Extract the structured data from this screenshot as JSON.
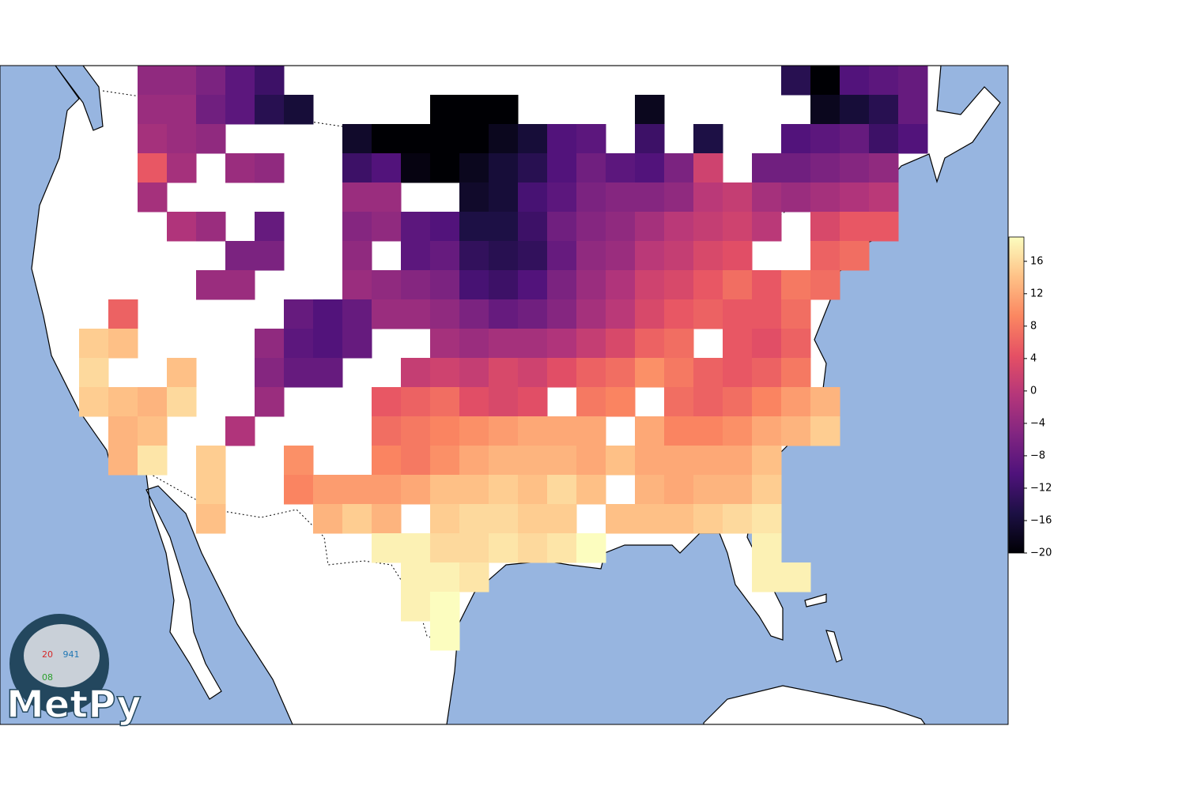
{
  "chart_data": {
    "type": "heatmap",
    "colormap": [
      "#000004",
      "#1c1044",
      "#4f127b",
      "#812581",
      "#b5367a",
      "#e55064",
      "#fb8761",
      "#fec287",
      "#fcfdbf"
    ],
    "clim": [
      -20,
      19
    ],
    "cticks": [
      {
        "value": -20,
        "label": "−20"
      },
      {
        "value": -16,
        "label": "−16"
      },
      {
        "value": -12,
        "label": "−12"
      },
      {
        "value": -8,
        "label": "−8"
      },
      {
        "value": -4,
        "label": "−4"
      },
      0,
      4,
      8,
      12,
      16
    ],
    "values": [
      [
        null,
        null,
        -4,
        -4,
        -6,
        -9,
        -12,
        null,
        null,
        null,
        null,
        null,
        null,
        null,
        null,
        null,
        null,
        null,
        null,
        null,
        null,
        null,
        null,
        null,
        -14,
        -20,
        -10,
        -9,
        -8
      ],
      [
        null,
        null,
        -3,
        -3,
        -7,
        -9,
        -14,
        -16,
        null,
        null,
        null,
        null,
        -20,
        -20,
        -20,
        null,
        null,
        null,
        null,
        -18,
        null,
        null,
        null,
        null,
        null,
        -18,
        -16,
        -14,
        -8
      ],
      [
        null,
        null,
        -2,
        -3,
        -4,
        null,
        null,
        null,
        null,
        -17,
        -20,
        -20,
        -20,
        -20,
        -18,
        -16,
        -10,
        -9,
        null,
        -12,
        null,
        -15,
        null,
        null,
        -10,
        -9,
        -8,
        -12,
        -10
      ],
      [
        null,
        null,
        5,
        -2,
        null,
        -3,
        -4,
        null,
        null,
        -12,
        -10,
        -19,
        -20,
        -18,
        -16,
        -14,
        -10,
        -7,
        -9,
        -10,
        -6,
        2,
        null,
        -7,
        -7,
        -6,
        -5,
        -4,
        null
      ],
      [
        null,
        null,
        -2,
        null,
        null,
        null,
        null,
        null,
        null,
        -3,
        -3,
        null,
        null,
        -17,
        -16,
        -11,
        -9,
        -6,
        -5,
        -5,
        -4,
        0,
        1,
        -2,
        -3,
        -2,
        -1,
        0,
        null
      ],
      [
        null,
        null,
        null,
        -1,
        -3,
        null,
        -8,
        null,
        null,
        -5,
        -4,
        -9,
        -10,
        -15,
        -15,
        -12,
        -7,
        -5,
        -4,
        -2,
        0,
        1,
        2,
        0,
        null,
        3,
        5,
        5,
        null
      ],
      [
        null,
        null,
        null,
        null,
        null,
        -6,
        -6,
        null,
        null,
        -4,
        null,
        -9,
        -8,
        -13,
        -14,
        -13,
        -8,
        -4,
        -3,
        0,
        1,
        3,
        4,
        null,
        null,
        6,
        7,
        null,
        null
      ],
      [
        null,
        null,
        null,
        null,
        -3,
        -3,
        null,
        null,
        null,
        -3,
        -4,
        -5,
        -6,
        -11,
        -12,
        -10,
        -6,
        -3,
        -1,
        2,
        3,
        5,
        7,
        5,
        8,
        7,
        null,
        null,
        null
      ],
      [
        null,
        6,
        null,
        null,
        null,
        null,
        null,
        -8,
        -10,
        -8,
        -3,
        -3,
        -4,
        -6,
        -8,
        -7,
        -5,
        -2,
        0,
        3,
        5,
        6,
        5,
        5,
        7,
        null,
        null,
        null,
        null
      ],
      [
        15,
        14,
        null,
        null,
        null,
        null,
        -4,
        -9,
        -10,
        -8,
        null,
        null,
        -2,
        -3,
        -2,
        -2,
        -1,
        1,
        3,
        6,
        7,
        null,
        5,
        4,
        6,
        null,
        null,
        null,
        null
      ],
      [
        16,
        null,
        null,
        14,
        null,
        null,
        -5,
        -8,
        -8,
        null,
        null,
        1,
        2,
        1,
        3,
        2,
        4,
        6,
        7,
        10,
        8,
        6,
        5,
        6,
        8,
        null,
        null,
        null,
        null
      ],
      [
        15,
        14,
        13,
        16,
        null,
        null,
        -3,
        null,
        null,
        null,
        5,
        6,
        7,
        4,
        3,
        4,
        null,
        8,
        9,
        null,
        7,
        6,
        7,
        9,
        11,
        13,
        null,
        null,
        null
      ],
      [
        null,
        13,
        14,
        null,
        null,
        -1,
        null,
        null,
        null,
        null,
        7,
        8,
        9,
        10,
        11,
        12,
        12,
        12,
        null,
        12,
        9,
        9,
        10,
        12,
        13,
        15,
        null,
        null,
        null
      ],
      [
        null,
        13,
        17,
        null,
        15,
        null,
        null,
        10,
        null,
        null,
        9,
        8,
        10,
        12,
        13,
        13,
        13,
        12,
        14,
        12,
        12,
        12,
        12,
        14,
        null,
        null,
        null,
        null,
        null
      ],
      [
        null,
        null,
        null,
        null,
        15,
        null,
        null,
        9,
        11,
        11,
        11,
        12,
        14,
        14,
        15,
        14,
        16,
        14,
        null,
        13,
        12,
        13,
        13,
        15,
        null,
        null,
        null,
        null,
        null
      ],
      [
        null,
        null,
        null,
        null,
        14,
        null,
        null,
        null,
        13,
        15,
        13,
        null,
        15,
        16,
        16,
        15,
        15,
        null,
        14,
        14,
        14,
        15,
        16,
        17,
        null,
        null,
        null,
        null,
        null
      ],
      [
        null,
        null,
        null,
        null,
        null,
        null,
        null,
        null,
        null,
        null,
        18,
        18,
        16,
        16,
        17,
        16,
        17,
        19,
        null,
        null,
        null,
        null,
        null,
        18,
        null,
        null,
        null,
        null,
        null
      ],
      [
        null,
        null,
        null,
        null,
        null,
        null,
        null,
        null,
        null,
        null,
        null,
        18,
        18,
        17,
        null,
        null,
        null,
        null,
        null,
        null,
        null,
        null,
        null,
        18,
        18,
        null,
        null,
        null,
        null
      ],
      [
        null,
        null,
        null,
        null,
        null,
        null,
        null,
        null,
        null,
        null,
        null,
        18,
        19,
        null,
        null,
        null,
        null,
        null,
        null,
        null,
        null,
        null,
        null,
        null,
        null,
        null,
        null,
        null,
        null
      ],
      [
        null,
        null,
        null,
        null,
        null,
        null,
        null,
        null,
        null,
        null,
        null,
        null,
        19,
        null,
        null,
        null,
        null,
        null,
        null,
        null,
        null,
        null,
        null,
        null,
        null,
        null,
        null,
        null,
        null
      ]
    ]
  },
  "logo": {
    "title": "MetPy",
    "temperature": "20",
    "pressure": "941",
    "dewpoint": "08"
  }
}
